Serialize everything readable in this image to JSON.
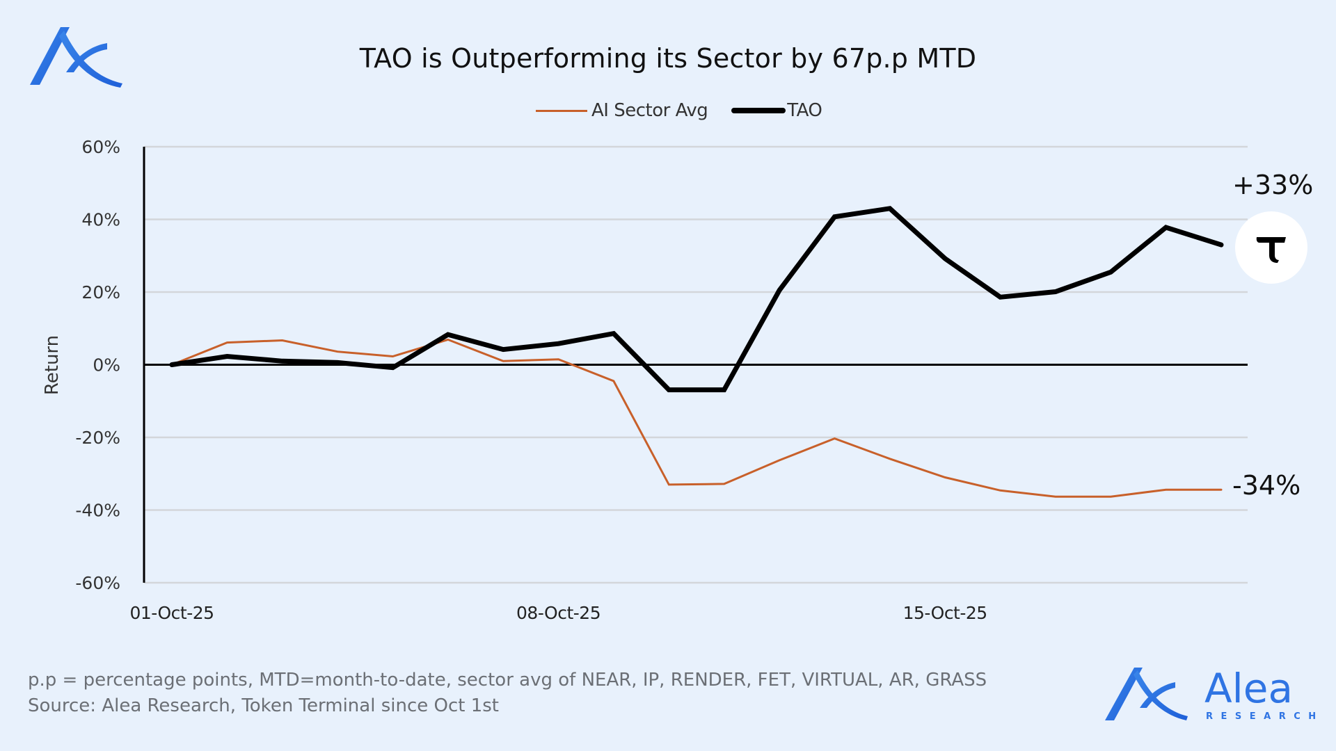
{
  "brand": {
    "logo_icon": "alea-logo-icon",
    "name": "Alea",
    "tagline": "RESEARCH",
    "color": "#2F74E3"
  },
  "footer": {
    "line1": "p.p = percentage points, MTD=month-to-date, sector avg of NEAR, IP, RENDER, FET, VIRTUAL, AR, GRASS",
    "line2": "Source: Alea Research, Token Terminal since Oct 1st"
  },
  "badge": {
    "icon": "tao-token-icon",
    "glyph": "τ"
  },
  "chart_data": {
    "type": "line",
    "title": "TAO is Outperforming its Sector by 67p.p MTD",
    "xlabel": "",
    "ylabel": "Return",
    "ylim": [
      -60,
      60
    ],
    "yticks": [
      60,
      40,
      20,
      0,
      -20,
      -40,
      -60
    ],
    "ytick_labels": [
      "60%",
      "40%",
      "20%",
      "0%",
      "-20%",
      "-40%",
      "-60%"
    ],
    "grid": true,
    "legend_position": "top-center",
    "x": [
      "01-Oct-25",
      "02-Oct-25",
      "03-Oct-25",
      "04-Oct-25",
      "05-Oct-25",
      "06-Oct-25",
      "07-Oct-25",
      "08-Oct-25",
      "09-Oct-25",
      "10-Oct-25",
      "11-Oct-25",
      "12-Oct-25",
      "13-Oct-25",
      "14-Oct-25",
      "15-Oct-25",
      "16-Oct-25",
      "17-Oct-25",
      "18-Oct-25",
      "19-Oct-25",
      "20-Oct-25"
    ],
    "xtick_labels": [
      {
        "index": 0,
        "label": "01-Oct-25"
      },
      {
        "index": 7,
        "label": "08-Oct-25"
      },
      {
        "index": 14,
        "label": "15-Oct-25"
      }
    ],
    "series": [
      {
        "name": "AI Sector Avg",
        "color": "#C8602A",
        "values": [
          0,
          6.1,
          6.7,
          3.6,
          2.3,
          6.9,
          1.0,
          1.5,
          -4.5,
          -33.0,
          -32.8,
          -26.3,
          -20.3,
          -25.9,
          -31.0,
          -34.6,
          -36.3,
          -36.3,
          -34.4,
          -34.4
        ],
        "end_label": "-34%"
      },
      {
        "name": "TAO",
        "color": "#000000",
        "values": [
          0,
          2.3,
          1.0,
          0.6,
          -0.8,
          8.3,
          4.2,
          5.8,
          8.6,
          -6.9,
          -6.9,
          20.5,
          40.7,
          43.0,
          29.2,
          18.6,
          20.1,
          25.5,
          37.8,
          33.0
        ],
        "end_label": "+33%"
      }
    ]
  }
}
